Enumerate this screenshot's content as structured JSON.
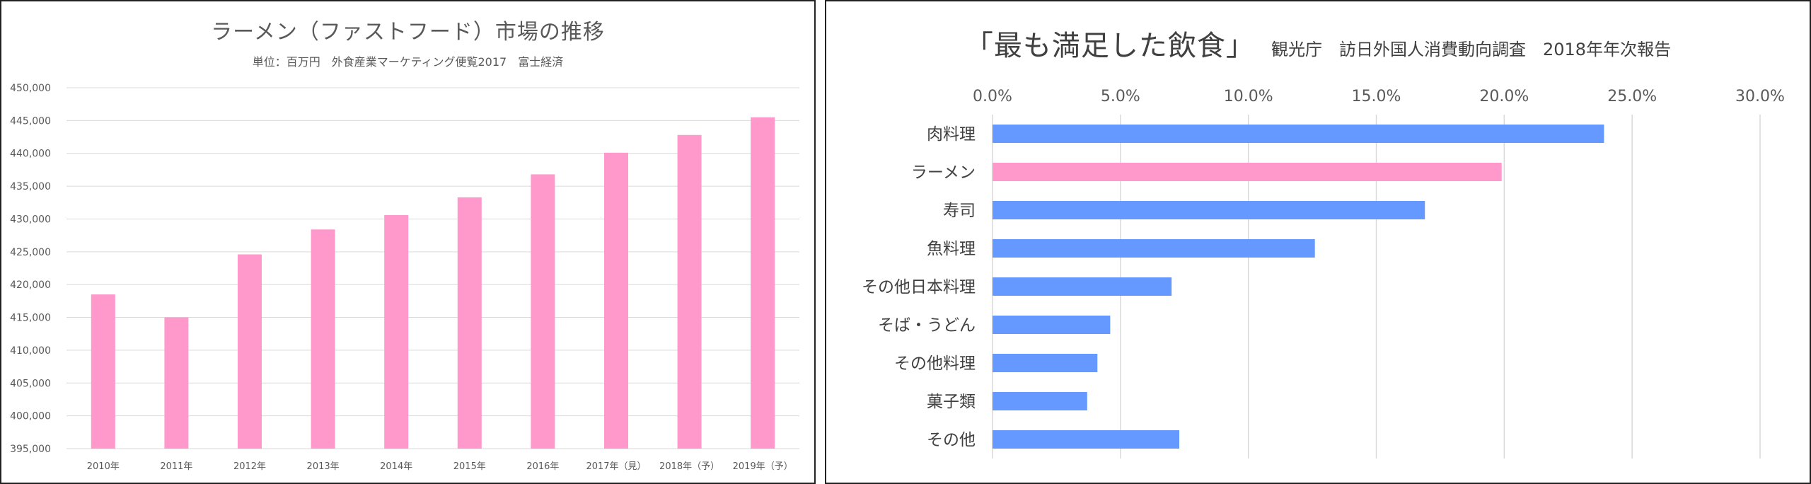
{
  "chart_data": [
    {
      "type": "bar",
      "title": "ラーメン（ファストフード）市場の推移",
      "subtitle": "単位：百万円　外食産業マーケティング便覧2017　富士経済",
      "categories": [
        "2010年",
        "2011年",
        "2012年",
        "2013年",
        "2014年",
        "2015年",
        "2016年",
        "2017年（見）",
        "2018年（予）",
        "2019年（予）"
      ],
      "values": [
        418500,
        415000,
        424600,
        428400,
        430600,
        433300,
        436800,
        440100,
        442800,
        445500
      ],
      "ylim": [
        395000,
        450000
      ],
      "yticks": [
        "395,000",
        "400,000",
        "405,000",
        "410,000",
        "415,000",
        "420,000",
        "425,000",
        "430,000",
        "435,000",
        "440,000",
        "445,000",
        "450,000"
      ],
      "grid": true,
      "color": "#ff99cc"
    },
    {
      "type": "bar",
      "orientation": "horizontal",
      "title": "「最も満足した飲食」",
      "subtitle": "観光庁　訪日外国人消費動向調査　2018年年次報告",
      "categories": [
        "肉料理",
        "ラーメン",
        "寿司",
        "魚料理",
        "その他日本料理",
        "そば・うどん",
        "その他料理",
        "菓子類",
        "その他"
      ],
      "values": [
        23.9,
        19.9,
        16.9,
        12.6,
        7.0,
        4.6,
        4.1,
        3.7,
        7.3
      ],
      "unit": "%",
      "xlim": [
        0,
        30
      ],
      "xticks": [
        "0.0%",
        "5.0%",
        "10.0%",
        "15.0%",
        "20.0%",
        "25.0%",
        "30.0%"
      ],
      "grid": true,
      "color": "#6699ff",
      "highlight_color": "#ff99cc",
      "highlight_category": "ラーメン"
    }
  ]
}
